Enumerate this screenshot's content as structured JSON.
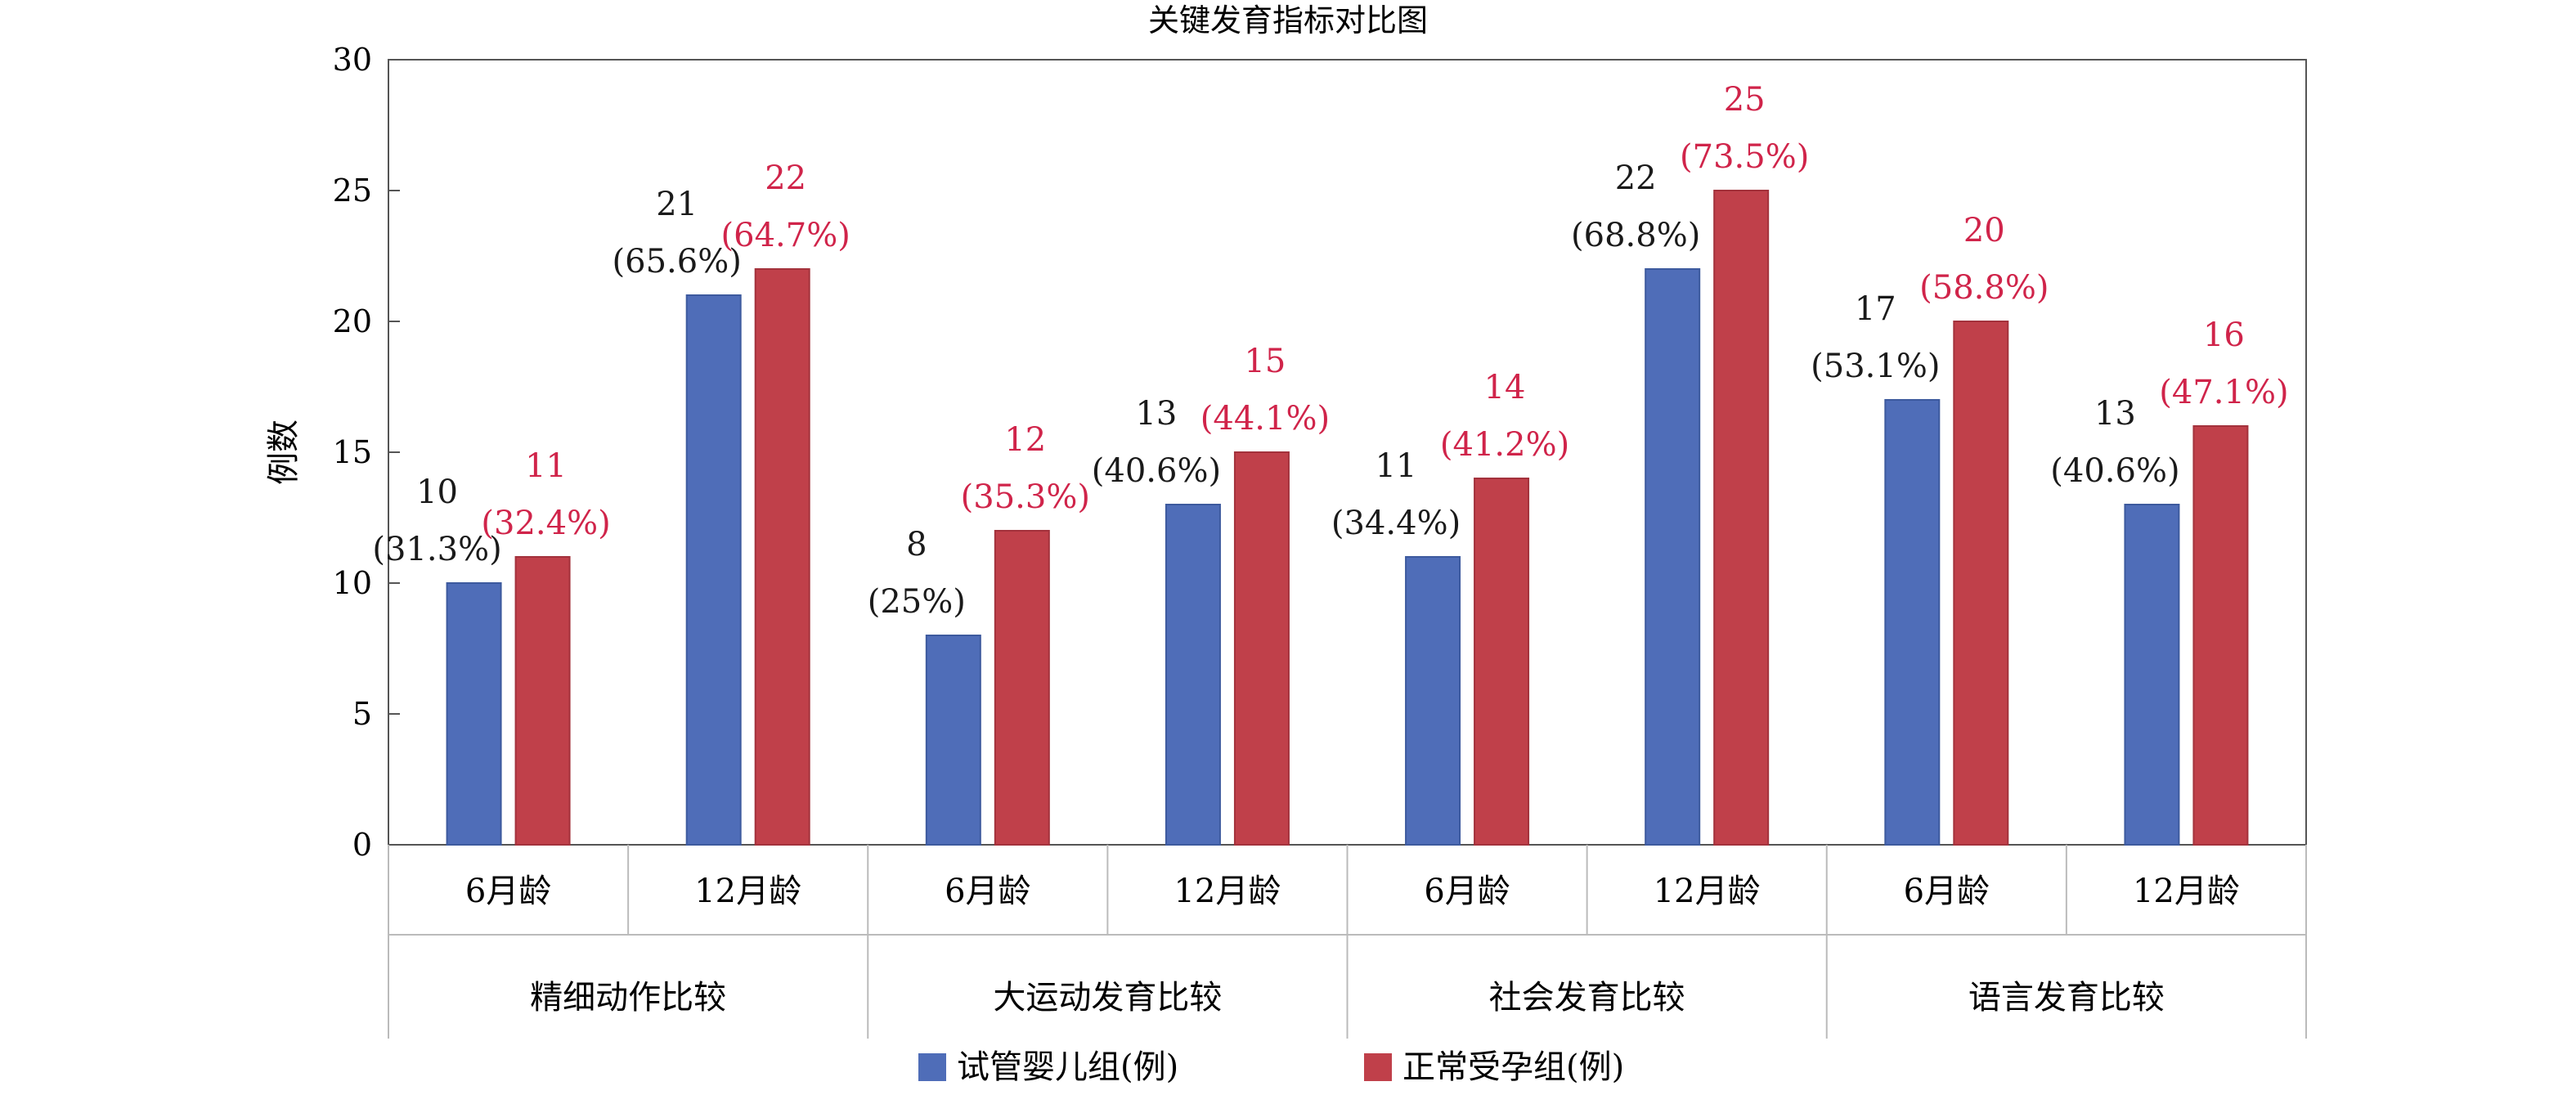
{
  "chart_data": {
    "type": "bar",
    "title": "关键发育指标对比图",
    "ylabel": "例数",
    "ylim": [
      0,
      30
    ],
    "yticks": [
      0,
      5,
      10,
      15,
      20,
      25,
      30
    ],
    "groups": [
      "精细动作比较",
      "大运动发育比较",
      "社会发育比较",
      "语言发育比较"
    ],
    "subcategories": [
      "6月龄",
      "12月龄",
      "6月龄",
      "12月龄",
      "6月龄",
      "12月龄",
      "6月龄",
      "12月龄"
    ],
    "series": [
      {
        "name": "试管婴儿组(例)",
        "color": "#4F6DB8",
        "values": [
          10,
          21,
          8,
          13,
          11,
          22,
          17,
          13
        ],
        "percent_labels": [
          "(31.3%)",
          "(65.6%)",
          "(25%)",
          "(40.6%)",
          "(34.4%)",
          "(68.8%)",
          "(53.1%)",
          "(40.6%)"
        ],
        "label_color": "#1a1a1a"
      },
      {
        "name": "正常受孕组(例)",
        "color": "#C0404A",
        "values": [
          11,
          22,
          12,
          15,
          14,
          25,
          20,
          16
        ],
        "percent_labels": [
          "(32.4%)",
          "(64.7%)",
          "(35.3%)",
          "(44.1%)",
          "(41.2%)",
          "(73.5%)",
          "(58.8%)",
          "(47.1%)"
        ],
        "label_color": "#D0244A"
      }
    ],
    "grid": false,
    "legend_position": "bottom"
  }
}
